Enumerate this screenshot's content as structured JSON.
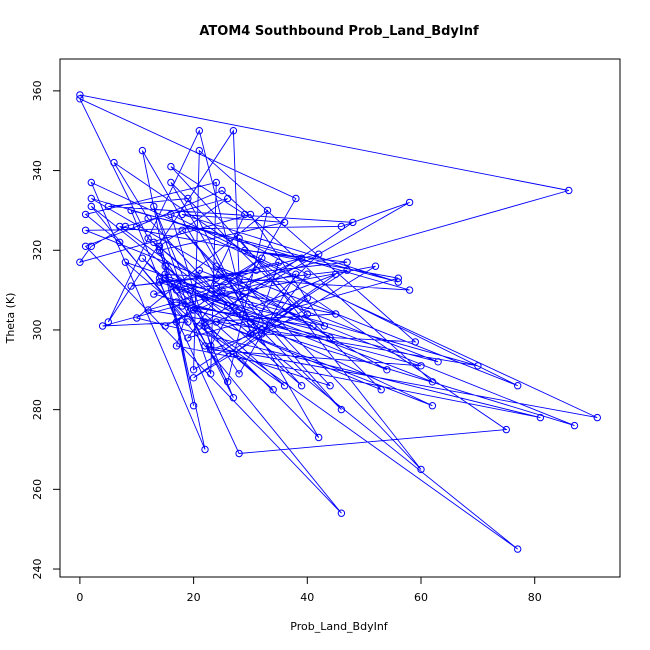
{
  "chart_data": {
    "type": "line",
    "title": "ATOM4 Southbound Prob_Land_BdyInf",
    "xlabel": "Prob_Land_BdyInf",
    "ylabel": "Theta (K)",
    "xlim": [
      -3.5,
      95
    ],
    "ylim": [
      238,
      368
    ],
    "xticks": [
      0,
      20,
      40,
      60,
      80
    ],
    "yticks": [
      240,
      260,
      280,
      300,
      320,
      340,
      360
    ],
    "grid": false,
    "legend": "none",
    "series_color": "#0000ff",
    "series": [
      {
        "points": [
          [
            0,
            359
          ],
          [
            86,
            335
          ],
          [
            12,
            305
          ],
          [
            70,
            291
          ],
          [
            15,
            313
          ],
          [
            62,
            287
          ],
          [
            25,
            335
          ],
          [
            10,
            326
          ],
          [
            1,
            321
          ],
          [
            46,
            254
          ],
          [
            2,
            331
          ],
          [
            77,
            245
          ],
          [
            22,
            301
          ],
          [
            45,
            314
          ],
          [
            30,
            299
          ],
          [
            21,
            350
          ],
          [
            5,
            302
          ],
          [
            27,
            350
          ],
          [
            28,
            313
          ],
          [
            60,
            265
          ],
          [
            28,
            323
          ],
          [
            40,
            314
          ],
          [
            32,
            299
          ],
          [
            59,
            297
          ],
          [
            21,
            345
          ],
          [
            20,
            290
          ],
          [
            47,
            315
          ],
          [
            17,
            310
          ],
          [
            43,
            301
          ],
          [
            30,
            329
          ],
          [
            0,
            317
          ],
          [
            2,
            321
          ],
          [
            8,
            326
          ],
          [
            26,
            333
          ],
          [
            14,
            321
          ],
          [
            20,
            281
          ],
          [
            11,
            345
          ],
          [
            24,
            313
          ],
          [
            35,
            317
          ],
          [
            31,
            300
          ],
          [
            13,
            322
          ],
          [
            27,
            283
          ],
          [
            13,
            331
          ],
          [
            23,
            289
          ],
          [
            24,
            337
          ],
          [
            1,
            329
          ],
          [
            7,
            322
          ],
          [
            19,
            302
          ],
          [
            4,
            301
          ],
          [
            38,
            314
          ],
          [
            28,
            289
          ],
          [
            14,
            320
          ],
          [
            36,
            327
          ],
          [
            18,
            329
          ],
          [
            56,
            312
          ],
          [
            9,
            330
          ],
          [
            17,
            302
          ],
          [
            32,
            318
          ],
          [
            24,
            311
          ],
          [
            46,
            280
          ],
          [
            18,
            325
          ],
          [
            44,
            286
          ],
          [
            22,
            296
          ],
          [
            91,
            278
          ],
          [
            2,
            337
          ],
          [
            22,
            270
          ],
          [
            15,
            316
          ],
          [
            39,
            286
          ],
          [
            12,
            328
          ],
          [
            6,
            342
          ],
          [
            75,
            275
          ],
          [
            28,
            269
          ],
          [
            14,
            312
          ],
          [
            26,
            306
          ],
          [
            58,
            332
          ],
          [
            46,
            326
          ],
          [
            1,
            325
          ],
          [
            87,
            276
          ],
          [
            18,
            306
          ],
          [
            41,
            301
          ],
          [
            8,
            317
          ],
          [
            34,
            285
          ],
          [
            27,
            294
          ],
          [
            40,
            308
          ],
          [
            20,
            288
          ],
          [
            52,
            316
          ],
          [
            22,
            308
          ],
          [
            29,
            329
          ],
          [
            16,
            341
          ],
          [
            40,
            304
          ],
          [
            23,
            295
          ],
          [
            60,
            291
          ],
          [
            13,
            309
          ],
          [
            42,
            319
          ],
          [
            30,
            302
          ],
          [
            19,
            333
          ],
          [
            5,
            331
          ],
          [
            48,
            327
          ],
          [
            21,
            301
          ],
          [
            36,
            286
          ],
          [
            11,
            318
          ],
          [
            42,
            273
          ],
          [
            16,
            337
          ],
          [
            53,
            285
          ],
          [
            24,
            302
          ],
          [
            62,
            281
          ],
          [
            14,
            313
          ],
          [
            54,
            290
          ],
          [
            2,
            333
          ],
          [
            58,
            310
          ],
          [
            15,
            314
          ],
          [
            26,
            287
          ],
          [
            33,
            330
          ],
          [
            10,
            303
          ],
          [
            81,
            278
          ],
          [
            17,
            296
          ],
          [
            21,
            315
          ],
          [
            63,
            292
          ],
          [
            28,
            305
          ],
          [
            12,
            323
          ],
          [
            0,
            358
          ],
          [
            38,
            333
          ],
          [
            23,
            296
          ],
          [
            16,
            329
          ],
          [
            77,
            286
          ],
          [
            24,
            316
          ],
          [
            44,
            298
          ],
          [
            17,
            307
          ],
          [
            31,
            315
          ],
          [
            9,
            311
          ],
          [
            47,
            317
          ],
          [
            29,
            320
          ],
          [
            39,
            318
          ],
          [
            15,
            301
          ],
          [
            20,
            305
          ],
          [
            32,
            300
          ],
          [
            7,
            326
          ],
          [
            56,
            313
          ],
          [
            19,
            298
          ],
          [
            25,
            310
          ],
          [
            45,
            304
          ],
          [
            22,
            302
          ]
        ]
      }
    ]
  }
}
